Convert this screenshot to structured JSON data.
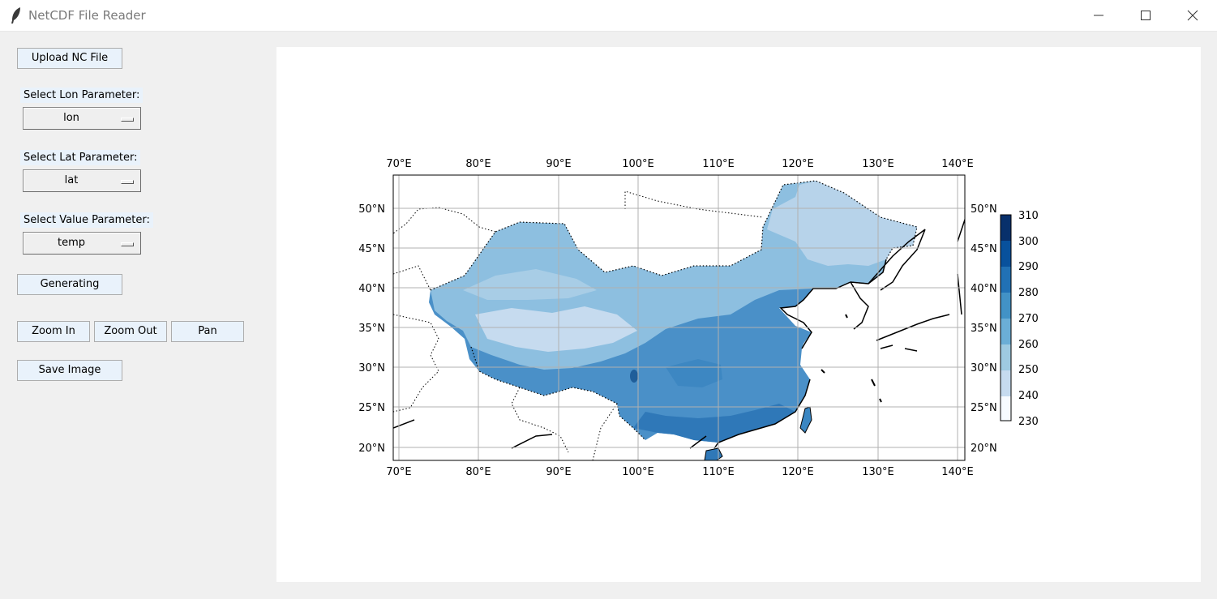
{
  "window": {
    "title": "NetCDF File Reader",
    "controls": [
      "minimize-icon",
      "maximize-icon",
      "close-icon"
    ]
  },
  "sidebar": {
    "upload_label": "Upload NC File",
    "lon": {
      "label": "Select Lon Parameter:",
      "value": "lon"
    },
    "lat": {
      "label": "Select Lat Parameter:",
      "value": "lat"
    },
    "value": {
      "label": "Select Value Parameter:",
      "value": "temp"
    },
    "generate_label": "Generating",
    "zoom_in_label": "Zoom In",
    "zoom_out_label": "Zoom Out",
    "pan_label": "Pan",
    "save_label": "Save Image"
  },
  "map": {
    "lon_ticks": [
      "70°E",
      "80°E",
      "90°E",
      "100°E",
      "110°E",
      "120°E",
      "130°E",
      "140°E"
    ],
    "lat_ticks": [
      "50°N",
      "45°N",
      "40°N",
      "35°N",
      "30°N",
      "25°N",
      "20°N"
    ],
    "colorbar_ticks": [
      "310",
      "300",
      "290",
      "280",
      "270",
      "260",
      "250",
      "240",
      "230"
    ],
    "colorbar_colors": [
      "#08306b",
      "#08519c",
      "#2171b5",
      "#4292c6",
      "#6baed6",
      "#9ecae1",
      "#c6dbef",
      "#deebf7",
      "#f7fbff"
    ]
  }
}
